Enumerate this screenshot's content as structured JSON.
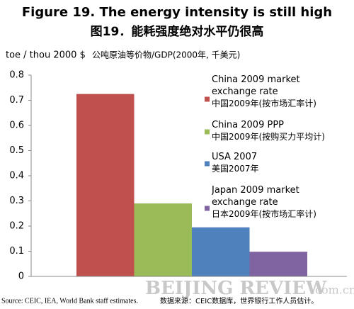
{
  "chart_data": {
    "type": "bar",
    "title": "Figure 19. The energy intensity is still high",
    "subtitle": "图19．能耗强度绝对水平仍很高",
    "ylabel": "toe / thou 2000 $",
    "ylabel_cn": "公吨原油等价物/GDP(2000年, 千美元)",
    "categories": [
      null
    ],
    "series": [
      {
        "name": "China 2009 market exchange rate",
        "name_cn": "中国2009年(按市场汇率计)",
        "color": "#c0504d",
        "values": [
          0.725
        ]
      },
      {
        "name": "China 2009 PPP",
        "name_cn": "中国2009年(按购买力平均计)",
        "color": "#9bbb59",
        "values": [
          0.29
        ]
      },
      {
        "name": "USA 2007",
        "name_cn": "美国2007年",
        "color": "#4f81bd",
        "values": [
          0.195
        ]
      },
      {
        "name": "Japan 2009 market exchange rate",
        "name_cn": "日本2009年(按市场汇率计)",
        "color": "#8064a2",
        "values": [
          0.098
        ]
      }
    ],
    "ylim": [
      0,
      0.8
    ],
    "yticks": [
      0,
      0.1,
      0.2,
      0.3,
      0.4,
      0.5,
      0.6,
      0.7,
      0.8
    ],
    "source": "Source: CEIC, IEA, World Bank staff estimates.",
    "source_cn": "数据来源：CEIC数据库，世界银行工作人员估计。",
    "watermark": "BEIJING REVIEW",
    "watermark_domain": ".com.cn"
  }
}
